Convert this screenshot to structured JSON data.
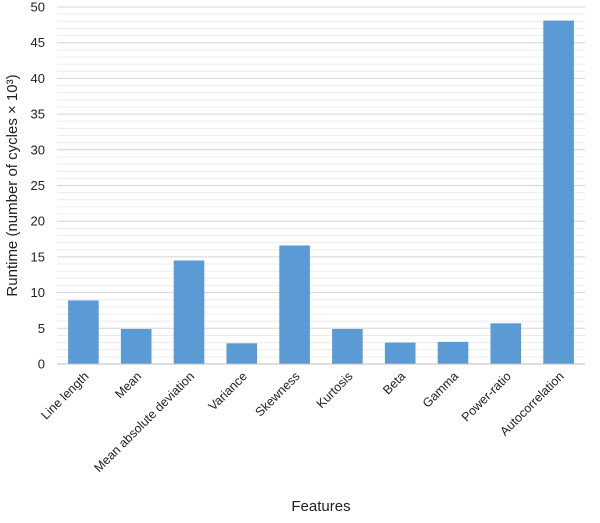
{
  "chart_data": {
    "type": "bar",
    "categories": [
      "Line length",
      "Mean",
      "Mean absolute deviation",
      "Variance",
      "Skewness",
      "Kurtosis",
      "Beta",
      "Gamma",
      "Power-ratio",
      "Autocorrelation"
    ],
    "values": [
      8.9,
      4.9,
      14.5,
      2.9,
      16.6,
      4.9,
      3.0,
      3.1,
      5.7,
      48.1
    ],
    "title": "",
    "xlabel": "Features",
    "ylabel": "Runtime (number of cycles × 10³)",
    "ylim": [
      0,
      50
    ],
    "yticks": [
      0,
      5,
      10,
      15,
      20,
      25,
      30,
      35,
      40,
      45,
      50
    ],
    "grid": true,
    "legend": "none",
    "colors": {
      "bar": "#5b9bd5",
      "grid": "#d9d9d9",
      "axis": "#bfbfbf"
    }
  }
}
